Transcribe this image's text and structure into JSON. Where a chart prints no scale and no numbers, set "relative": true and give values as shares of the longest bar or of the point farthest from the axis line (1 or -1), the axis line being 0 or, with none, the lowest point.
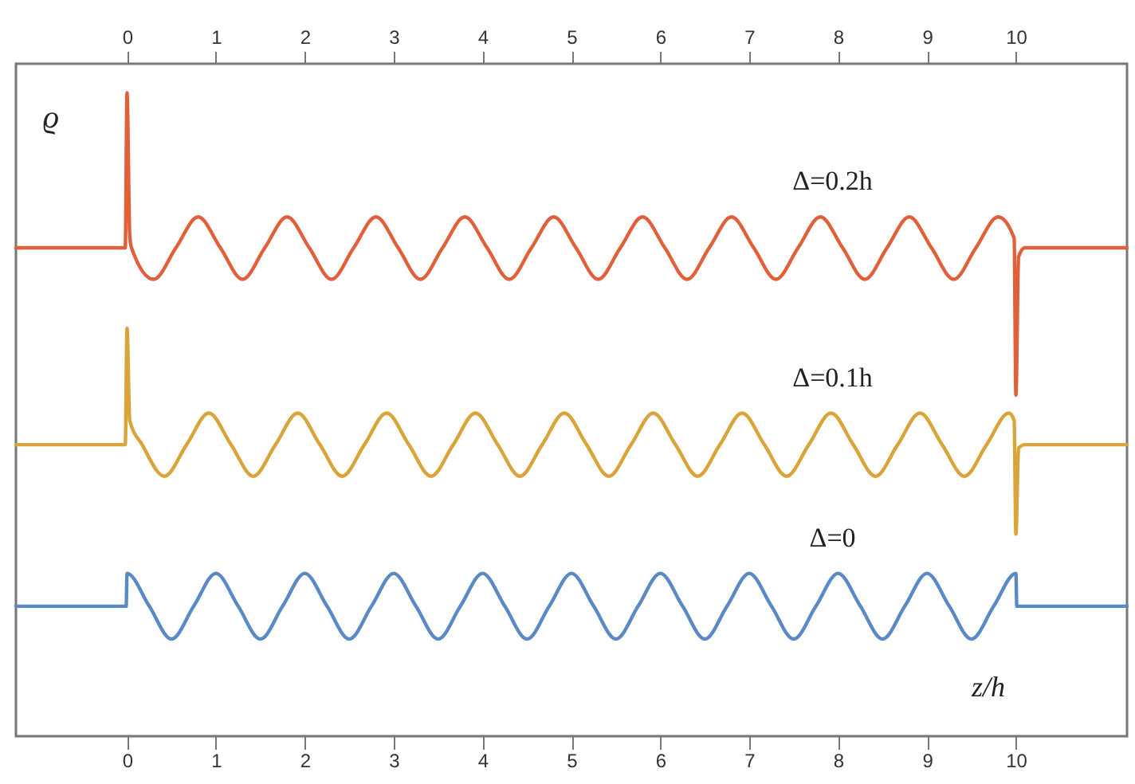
{
  "chart_data": {
    "type": "line",
    "relative": true,
    "xlabel": "z/h",
    "ylabel": "ϱ",
    "xlim": [
      -1.25,
      11.25
    ],
    "xticks": [
      0,
      1,
      2,
      3,
      4,
      5,
      6,
      7,
      8,
      9,
      10
    ],
    "x2lim": [
      -1.25,
      11.25
    ],
    "x2ticks": [
      0,
      1,
      2,
      3,
      4,
      5,
      6,
      7,
      8,
      9,
      10
    ],
    "grid": false,
    "series": [
      {
        "name": "Δ=0.2h",
        "color": "#e0603a",
        "x": [
          -1.25,
          -0.02,
          0,
          0.03,
          0.05,
          0.3,
          0.55,
          0.8,
          1.05,
          1.3,
          1.55,
          1.8,
          2.05,
          2.3,
          2.55,
          2.8,
          3.05,
          3.3,
          3.55,
          3.8,
          4.05,
          4.3,
          4.55,
          4.8,
          5.05,
          5.3,
          5.55,
          5.8,
          6.05,
          6.3,
          6.55,
          6.8,
          7.05,
          7.3,
          7.55,
          7.8,
          8.05,
          8.3,
          8.55,
          8.8,
          9.05,
          9.3,
          9.55,
          9.8,
          9.98,
          10,
          10.03,
          10.1,
          11.25
        ],
        "values": [
          0.759,
          0.759,
          1.0,
          0.779,
          0.759,
          0.71,
          0.759,
          0.807,
          0.759,
          0.71,
          0.759,
          0.807,
          0.759,
          0.71,
          0.759,
          0.807,
          0.759,
          0.71,
          0.759,
          0.807,
          0.759,
          0.71,
          0.759,
          0.807,
          0.759,
          0.71,
          0.759,
          0.807,
          0.759,
          0.71,
          0.759,
          0.807,
          0.759,
          0.71,
          0.759,
          0.807,
          0.759,
          0.71,
          0.759,
          0.807,
          0.759,
          0.71,
          0.759,
          0.807,
          0.774,
          0.53,
          0.745,
          0.759,
          0.759
        ]
      },
      {
        "name": "Δ=0.1h",
        "color": "#d9a43a",
        "x": [
          -1.25,
          -0.02,
          0,
          0.03,
          0.17,
          0.42,
          0.67,
          0.92,
          1.17,
          1.42,
          1.67,
          1.92,
          2.17,
          2.42,
          2.67,
          2.92,
          3.17,
          3.42,
          3.67,
          3.92,
          4.17,
          4.42,
          4.67,
          4.92,
          5.17,
          5.42,
          5.67,
          5.92,
          6.17,
          6.42,
          6.67,
          6.92,
          7.17,
          7.42,
          7.67,
          7.92,
          8.17,
          8.42,
          8.67,
          8.92,
          9.17,
          9.42,
          9.67,
          9.92,
          9.98,
          10,
          10.03,
          10.1,
          11.25
        ],
        "values": [
          0.453,
          0.453,
          0.634,
          0.491,
          0.453,
          0.404,
          0.453,
          0.502,
          0.453,
          0.404,
          0.453,
          0.502,
          0.453,
          0.404,
          0.453,
          0.502,
          0.453,
          0.404,
          0.453,
          0.502,
          0.453,
          0.404,
          0.453,
          0.502,
          0.453,
          0.404,
          0.453,
          0.502,
          0.453,
          0.404,
          0.453,
          0.502,
          0.453,
          0.404,
          0.453,
          0.502,
          0.453,
          0.404,
          0.453,
          0.502,
          0.453,
          0.404,
          0.453,
          0.502,
          0.491,
          0.314,
          0.448,
          0.453,
          0.453
        ]
      },
      {
        "name": "Δ=0",
        "color": "#5a8ac6",
        "x": [
          -1.25,
          -0.01,
          0,
          0.25,
          0.5,
          0.75,
          1,
          1.25,
          1.5,
          1.75,
          2,
          2.25,
          2.5,
          2.75,
          3,
          3.25,
          3.5,
          3.75,
          4,
          4.25,
          4.5,
          4.75,
          5,
          5.25,
          5.5,
          5.75,
          6,
          6.25,
          6.5,
          6.75,
          7,
          7.25,
          7.5,
          7.75,
          8,
          8.25,
          8.5,
          8.75,
          9,
          9.25,
          9.5,
          9.75,
          10,
          10.01,
          11.25
        ],
        "values": [
          0.202,
          0.202,
          0.253,
          0.202,
          0.151,
          0.202,
          0.253,
          0.202,
          0.151,
          0.202,
          0.253,
          0.202,
          0.151,
          0.202,
          0.253,
          0.202,
          0.151,
          0.202,
          0.253,
          0.202,
          0.151,
          0.202,
          0.253,
          0.202,
          0.151,
          0.202,
          0.253,
          0.202,
          0.151,
          0.202,
          0.253,
          0.202,
          0.151,
          0.202,
          0.253,
          0.202,
          0.151,
          0.202,
          0.253,
          0.202,
          0.151,
          0.202,
          0.253,
          0.202,
          0.202
        ]
      }
    ]
  }
}
